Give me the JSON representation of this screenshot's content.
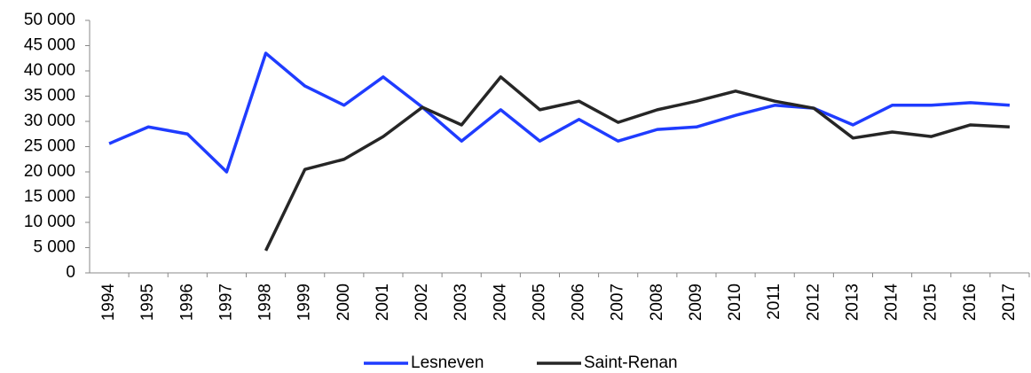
{
  "chart_data": {
    "type": "line",
    "categories": [
      "1994",
      "1995",
      "1996",
      "1997",
      "1998",
      "1999",
      "2000",
      "2001",
      "2002",
      "2003",
      "2004",
      "2005",
      "2006",
      "2007",
      "2008",
      "2009",
      "2010",
      "2011",
      "2012",
      "2013",
      "2014",
      "2015",
      "2016",
      "2017"
    ],
    "series": [
      {
        "name": "Lesneven",
        "color": "#1f3cff",
        "values": [
          25600,
          28900,
          27500,
          20000,
          43500,
          37000,
          33200,
          38800,
          32800,
          26100,
          32300,
          26100,
          30400,
          26100,
          28400,
          28900,
          31200,
          33200,
          32600,
          29300,
          33200,
          33200,
          33700,
          33200
        ]
      },
      {
        "name": "Saint-Renan",
        "color": "#262626",
        "values": [
          null,
          null,
          null,
          null,
          4400,
          20500,
          22500,
          27000,
          32800,
          29300,
          38800,
          32300,
          34000,
          29800,
          32300,
          34000,
          36000,
          34000,
          32600,
          26700,
          27900,
          27000,
          29300,
          28900
        ]
      }
    ],
    "ylim": [
      0,
      50000
    ],
    "yticks": [
      0,
      {
        "value": 5000,
        "label": "5 000"
      },
      {
        "value": 10000,
        "label": "10 000"
      },
      {
        "value": 15000,
        "label": "15 000"
      },
      {
        "value": 20000,
        "label": "20 000"
      },
      {
        "value": 25000,
        "label": "25 000"
      },
      {
        "value": 30000,
        "label": "30 000"
      },
      {
        "value": 35000,
        "label": "35 000"
      },
      {
        "value": 40000,
        "label": "40 000"
      },
      {
        "value": 45000,
        "label": "45 000"
      },
      {
        "value": 50000,
        "label": "50 000"
      }
    ],
    "grid": false,
    "legend": "bottom"
  }
}
